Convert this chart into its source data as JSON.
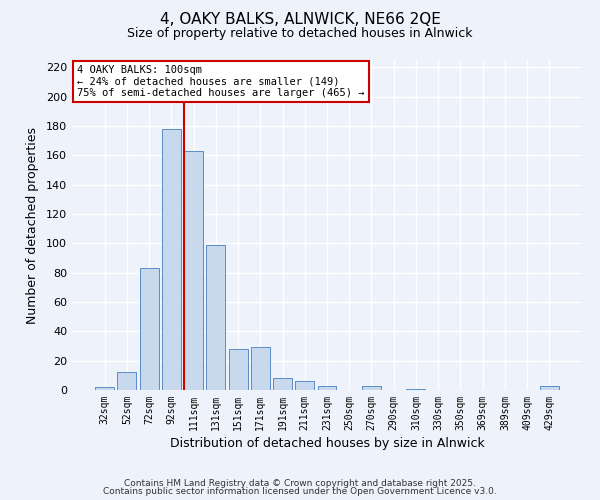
{
  "title": "4, OAKY BALKS, ALNWICK, NE66 2QE",
  "subtitle": "Size of property relative to detached houses in Alnwick",
  "xlabel": "Distribution of detached houses by size in Alnwick",
  "ylabel": "Number of detached properties",
  "bar_labels": [
    "32sqm",
    "52sqm",
    "72sqm",
    "92sqm",
    "111sqm",
    "131sqm",
    "151sqm",
    "171sqm",
    "191sqm",
    "211sqm",
    "231sqm",
    "250sqm",
    "270sqm",
    "290sqm",
    "310sqm",
    "330sqm",
    "350sqm",
    "369sqm",
    "389sqm",
    "409sqm",
    "429sqm"
  ],
  "bar_values": [
    2,
    12,
    83,
    178,
    163,
    99,
    28,
    29,
    8,
    6,
    3,
    0,
    3,
    0,
    1,
    0,
    0,
    0,
    0,
    0,
    3
  ],
  "bar_color": "#c8d9ee",
  "bar_edge_color": "#5b8cc8",
  "vline_color": "#cc0000",
  "annotation_text": "4 OAKY BALKS: 100sqm\n← 24% of detached houses are smaller (149)\n75% of semi-detached houses are larger (465) →",
  "annotation_box_color": "#ffffff",
  "annotation_box_edge_color": "#cc0000",
  "ylim": [
    0,
    225
  ],
  "yticks": [
    0,
    20,
    40,
    60,
    80,
    100,
    120,
    140,
    160,
    180,
    200,
    220
  ],
  "bg_color": "#eef2fa",
  "grid_color": "#ffffff",
  "footer_line1": "Contains HM Land Registry data © Crown copyright and database right 2025.",
  "footer_line2": "Contains public sector information licensed under the Open Government Licence v3.0."
}
